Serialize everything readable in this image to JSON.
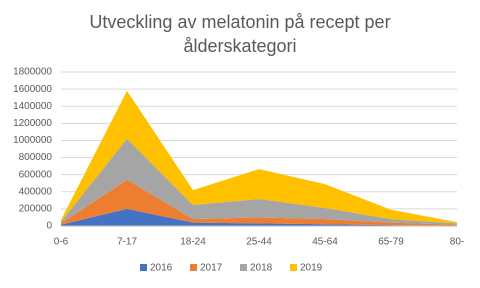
{
  "chart_data": {
    "type": "stacked-area",
    "title": "Utveckling av melatonin på recept per ålderskategori",
    "categories": [
      "0-6",
      "7-17",
      "18-24",
      "25-44",
      "45-64",
      "65-79",
      "80-"
    ],
    "series": [
      {
        "name": "2016",
        "color": "#4472c4",
        "values": [
          15000,
          200000,
          40000,
          30000,
          20000,
          10000,
          5000
        ]
      },
      {
        "name": "2017",
        "color": "#ed7d31",
        "values": [
          15000,
          340000,
          40000,
          70000,
          60000,
          30000,
          10000
        ]
      },
      {
        "name": "2018",
        "color": "#a5a5a5",
        "values": [
          20000,
          480000,
          165000,
          215000,
          130000,
          40000,
          15000
        ]
      },
      {
        "name": "2019",
        "color": "#ffc000",
        "values": [
          20000,
          560000,
          175000,
          350000,
          280000,
          110000,
          15000
        ]
      }
    ],
    "ylim": [
      0,
      1800000
    ],
    "yticks": [
      0,
      200000,
      400000,
      600000,
      800000,
      1000000,
      1200000,
      1400000,
      1600000,
      1800000
    ],
    "grid": true,
    "legend": "bottom"
  }
}
